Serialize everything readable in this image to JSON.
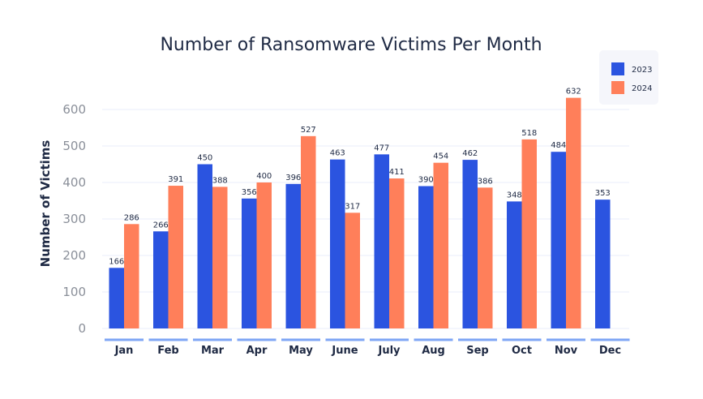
{
  "chart_data": {
    "type": "bar",
    "title": "Number of Ransomware Victims Per Month",
    "xlabel": "",
    "ylabel": "Number of Victims",
    "ylim": [
      0,
      600
    ],
    "yticks": [
      0,
      100,
      200,
      300,
      400,
      500,
      600
    ],
    "grid": true,
    "legend_position": "top-right",
    "categories": [
      "Jan",
      "Feb",
      "Mar",
      "Apr",
      "May",
      "June",
      "July",
      "Aug",
      "Sep",
      "Oct",
      "Nov",
      "Dec"
    ],
    "series": [
      {
        "name": "2023",
        "color": "#2b54e0",
        "values": [
          166,
          266,
          450,
          356,
          396,
          463,
          477,
          390,
          462,
          348,
          484,
          353
        ]
      },
      {
        "name": "2024",
        "color": "#ff7f5a",
        "values": [
          286,
          391,
          388,
          400,
          527,
          317,
          411,
          454,
          386,
          518,
          632,
          null
        ]
      }
    ]
  }
}
